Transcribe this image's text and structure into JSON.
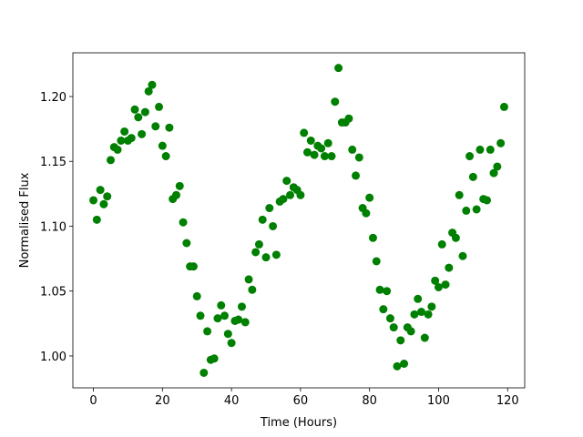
{
  "chart_data": {
    "type": "scatter",
    "x_label": "Time (Hours)",
    "y_label": "Normalised Flux",
    "color": "#008000",
    "x": [
      0,
      1,
      2,
      3,
      4,
      5,
      6,
      7,
      8,
      9,
      10,
      11,
      12,
      13,
      14,
      15,
      16,
      17,
      18,
      19,
      20,
      21,
      22,
      23,
      24,
      25,
      26,
      27,
      28,
      29,
      30,
      31,
      32,
      33,
      34,
      35,
      36,
      37,
      38,
      39,
      40,
      41,
      42,
      43,
      44,
      45,
      46,
      47,
      48,
      49,
      50,
      51,
      52,
      53,
      54,
      55,
      56,
      57,
      58,
      59,
      60,
      61,
      62,
      63,
      64,
      65,
      66,
      67,
      68,
      69,
      70,
      71,
      72,
      73,
      74,
      75,
      76,
      77,
      78,
      79,
      80,
      81,
      82,
      83,
      84,
      85,
      86,
      87,
      88,
      89,
      90,
      91,
      92,
      93,
      94,
      95,
      96,
      97,
      98,
      99,
      100,
      101,
      102,
      103,
      104,
      105,
      106,
      107,
      108,
      109,
      110,
      111,
      112,
      113,
      114,
      115,
      116,
      117,
      118,
      119
    ],
    "values": [
      1.12,
      1.105,
      1.128,
      1.117,
      1.123,
      1.151,
      1.161,
      1.159,
      1.166,
      1.173,
      1.166,
      1.168,
      1.19,
      1.184,
      1.171,
      1.188,
      1.204,
      1.209,
      1.177,
      1.192,
      1.162,
      1.154,
      1.176,
      1.121,
      1.124,
      1.131,
      1.103,
      1.087,
      1.069,
      1.069,
      1.046,
      1.031,
      0.987,
      1.019,
      0.997,
      0.998,
      1.029,
      1.039,
      1.031,
      1.017,
      1.01,
      1.027,
      1.028,
      1.038,
      1.026,
      1.059,
      1.051,
      1.08,
      1.086,
      1.105,
      1.076,
      1.114,
      1.1,
      1.078,
      1.119,
      1.121,
      1.135,
      1.124,
      1.13,
      1.128,
      1.124,
      1.172,
      1.157,
      1.166,
      1.155,
      1.162,
      1.16,
      1.154,
      1.164,
      1.154,
      1.196,
      1.222,
      1.18,
      1.18,
      1.183,
      1.159,
      1.139,
      1.153,
      1.114,
      1.11,
      1.122,
      1.091,
      1.073,
      1.051,
      1.036,
      1.05,
      1.029,
      1.022,
      0.992,
      1.012,
      0.994,
      1.022,
      1.019,
      1.032,
      1.044,
      1.034,
      1.014,
      1.032,
      1.038,
      1.058,
      1.053,
      1.086,
      1.055,
      1.068,
      1.095,
      1.091,
      1.124,
      1.077,
      1.112,
      1.154,
      1.138,
      1.113,
      1.159,
      1.121,
      1.12,
      1.159,
      1.141,
      1.146,
      1.164,
      1.192
    ],
    "xlim": [
      -5.95,
      124.95
    ],
    "ylim": [
      0.9754,
      1.2337
    ],
    "xticks": [
      0,
      20,
      40,
      60,
      80,
      100,
      120
    ],
    "yticks": [
      {
        "value": 1,
        "label": "1.00"
      },
      1.05,
      {
        "value": 1.1,
        "label": "1.10"
      },
      1.15,
      {
        "value": 1.2,
        "label": "1.20"
      }
    ]
  }
}
